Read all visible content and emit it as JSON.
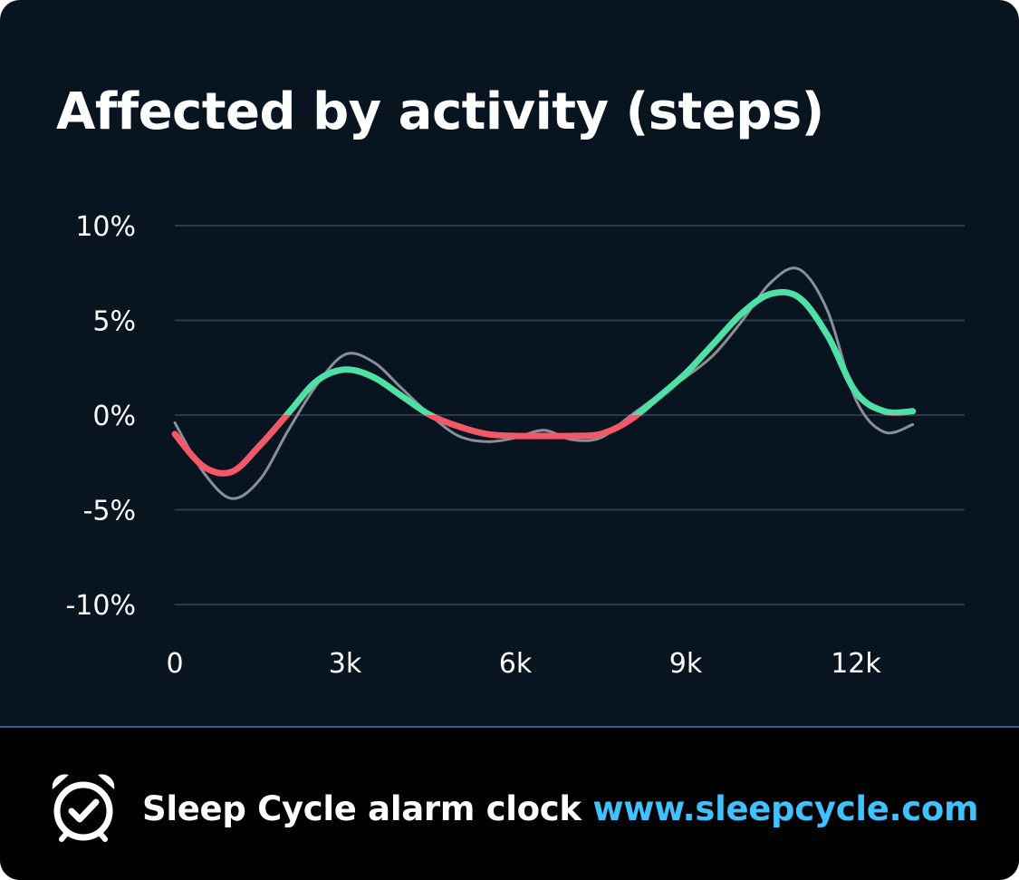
{
  "chart_data": {
    "type": "line",
    "title": "Affected by activity (steps)",
    "xlabel": "",
    "ylabel": "",
    "x_ticks": [
      {
        "value": 0,
        "label": "0"
      },
      {
        "value": 3000,
        "label": "3k"
      },
      {
        "value": 6000,
        "label": "6k"
      },
      {
        "value": 9000,
        "label": "9k"
      },
      {
        "value": 12000,
        "label": "12k"
      }
    ],
    "y_ticks": [
      {
        "value": 10,
        "label": "10%"
      },
      {
        "value": 5,
        "label": "5%"
      },
      {
        "value": 0,
        "label": "0%"
      },
      {
        "value": -5,
        "label": "-5%"
      },
      {
        "value": -10,
        "label": "-10%"
      }
    ],
    "xlim": [
      0,
      13000
    ],
    "ylim": [
      -10,
      10
    ],
    "grid": true,
    "legend": "none",
    "series": [
      {
        "role": "raw",
        "color": "#8a9099",
        "x": [
          0,
          500,
          1000,
          1500,
          2000,
          2500,
          3000,
          3500,
          4000,
          4500,
          5000,
          5500,
          6000,
          6500,
          7000,
          7500,
          8000,
          8500,
          9000,
          9500,
          10000,
          10500,
          11000,
          11500,
          12000,
          12500,
          13000
        ],
        "y": [
          -0.4,
          -3.0,
          -4.4,
          -3.4,
          -0.8,
          1.6,
          3.2,
          2.8,
          1.4,
          0.0,
          -1.1,
          -1.4,
          -1.2,
          -0.8,
          -1.3,
          -1.2,
          -0.1,
          1.0,
          2.0,
          3.2,
          5.0,
          7.0,
          7.7,
          5.5,
          0.8,
          -0.9,
          -0.5
        ]
      },
      {
        "role": "smoothed",
        "color_positive": "#4fe0a6",
        "color_negative": "#f25868",
        "x": [
          0,
          500,
          1000,
          1500,
          2000,
          2500,
          3000,
          3500,
          4000,
          4500,
          5000,
          5500,
          6000,
          6500,
          7000,
          7500,
          8000,
          8500,
          9000,
          9500,
          10000,
          10500,
          11000,
          11500,
          12000,
          12500,
          13000
        ],
        "y": [
          -1.0,
          -2.7,
          -3.0,
          -1.6,
          0.1,
          1.8,
          2.4,
          2.0,
          1.0,
          0.0,
          -0.6,
          -1.0,
          -1.1,
          -1.1,
          -1.1,
          -1.0,
          -0.3,
          0.9,
          2.2,
          3.8,
          5.4,
          6.4,
          6.2,
          4.2,
          1.2,
          0.2,
          0.2
        ]
      }
    ]
  },
  "footer": {
    "icon": "alarm-clock-icon",
    "brand_name": "Sleep Cycle alarm clock",
    "brand_url": "www.sleepcycle.com"
  },
  "colors": {
    "background": "#081520",
    "footer_background": "#000000",
    "gridline": "#2a3a4a",
    "accent_url": "#3fc2ff"
  }
}
